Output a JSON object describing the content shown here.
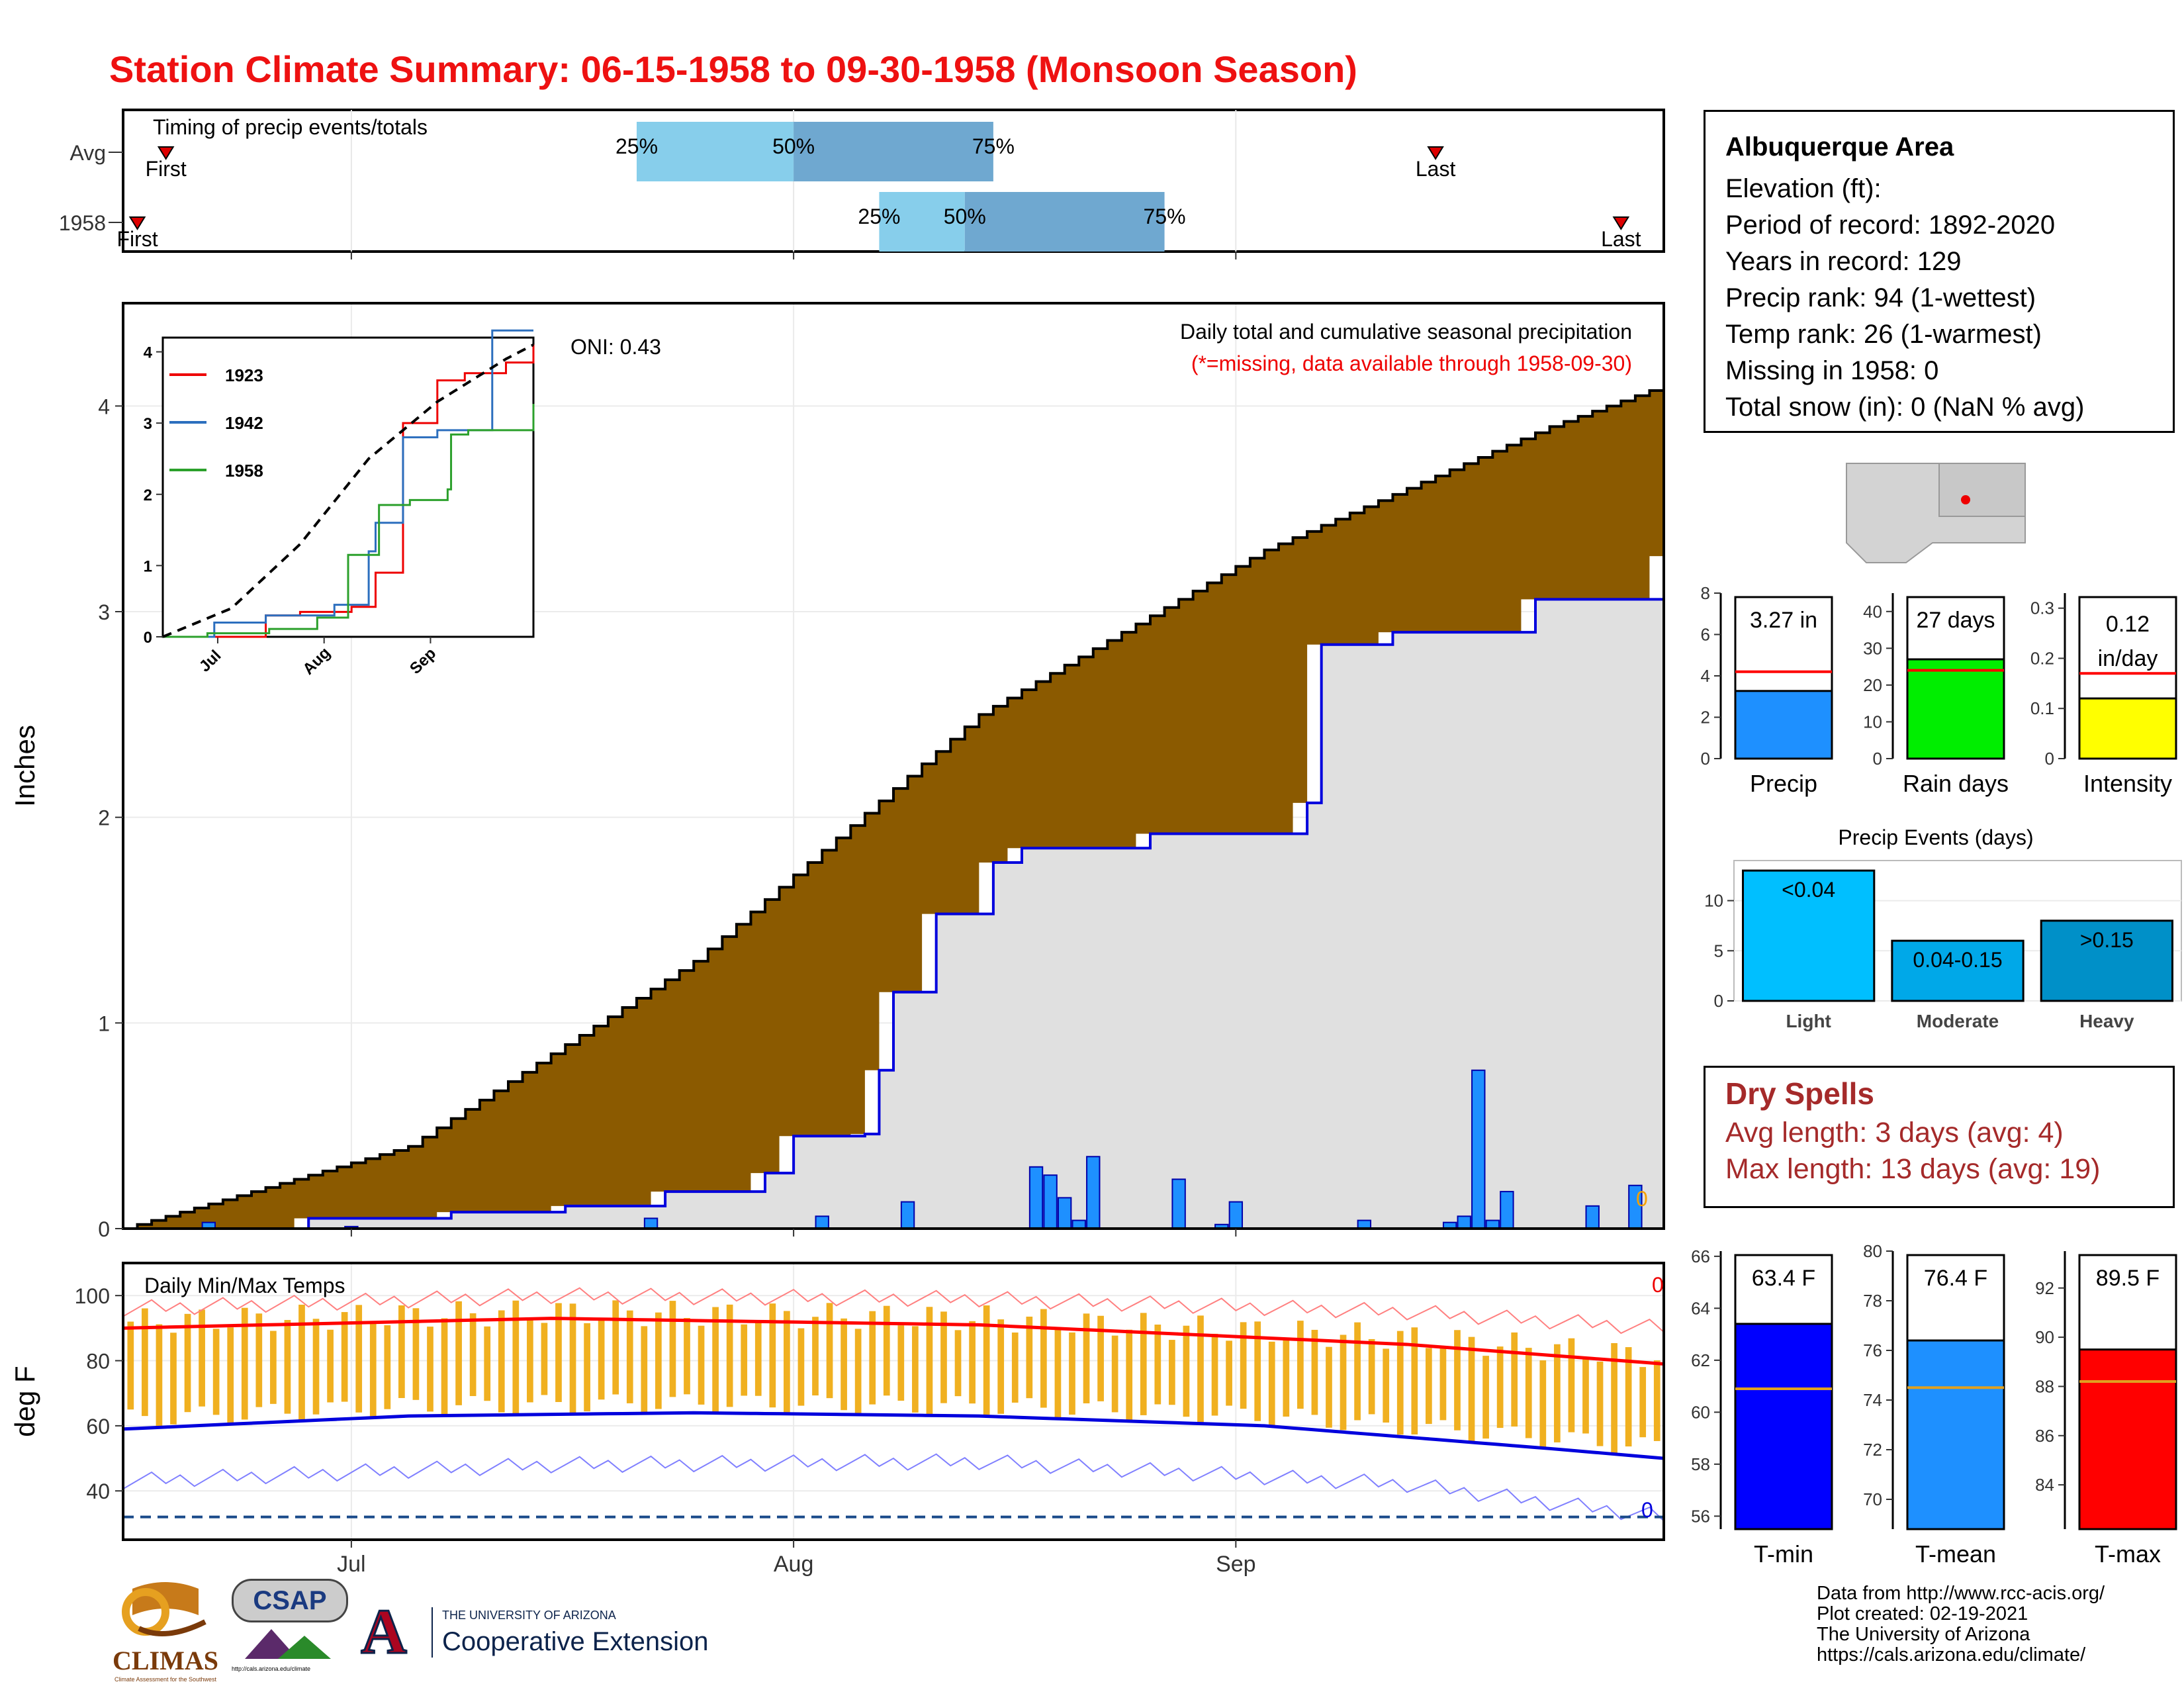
{
  "title": "Station Climate Summary: 06-15-1958 to 09-30-1958 (Monsoon Season)",
  "station": {
    "name": "Albuquerque Area",
    "lines": [
      "Elevation (ft):",
      "Period of record: 1892-2020",
      "Years in record: 129",
      "Precip rank: 94 (1-wettest)",
      "Temp rank: 26 (1-warmest)",
      "Missing in 1958: 0",
      "Total snow (in): 0 (NaN % avg)"
    ]
  },
  "dry_spells": {
    "title": "Dry Spells",
    "avg": "Avg length: 3 days (avg: 4)",
    "max": "Max length: 13 days (avg: 19)"
  },
  "credits": [
    "Data from http://www.rcc-acis.org/",
    "Plot created: 02-19-2021",
    "The University of Arizona",
    "https://cals.arizona.edu/climate/"
  ],
  "logos": {
    "climas": "CLIMAS",
    "climas_sub": "Climate Assessment for the Southwest",
    "csap": "CSAP",
    "csap_url": "http://cals.arizona.edu/climate",
    "ua_letter": "A",
    "ua_top": "THE UNIVERSITY OF ARIZONA",
    "ua_bottom": "Cooperative Extension"
  },
  "colors": {
    "title": "#ee1111",
    "cumulative_avg_fill": "#8b5a00",
    "cumulative_obs_fill": "#e0e0e0",
    "observed_line": "#0000dd",
    "daily_bar": "#1e90ff",
    "tmax_line": "#ff0000",
    "tmin_line": "#0000dd",
    "temp_bar": "#f0b020",
    "timing_light": "#87ceeb",
    "timing_dark": "#6fa8d0",
    "dry_text": "#a52a2a"
  },
  "chart_data": [
    {
      "id": "timing",
      "type": "bar",
      "title": "Timing of precip events/totals",
      "categories": [
        "Avg",
        "1958"
      ],
      "x_ticks": [
        "Jul",
        "Aug",
        "Sep"
      ],
      "rows": [
        {
          "label": "Avg",
          "first": "06-18",
          "p25": "07-21",
          "p50": "08-01",
          "p75": "08-15",
          "last": "09-15"
        },
        {
          "label": "1958",
          "first": "06-16",
          "p25": "08-07",
          "p50": "08-13",
          "p75": "08-27",
          "last": "09-28"
        }
      ],
      "marker_labels": {
        "first": "First",
        "last": "Last",
        "p25": "25%",
        "p50": "50%",
        "p75": "75%"
      }
    },
    {
      "id": "precip",
      "type": "area",
      "title": "Daily total and cumulative seasonal precipitation",
      "subtitle": "(*=missing, data available through 1958-09-30)",
      "ylabel": "Inches",
      "ylim": [
        0,
        4.5
      ],
      "y_ticks": [
        0,
        1,
        2,
        3,
        4
      ],
      "x_ticks": [
        "Jul",
        "Aug",
        "Sep"
      ],
      "oni": "ONI: 0.43",
      "end_label": "0",
      "avg_cumulative": {
        "x_day": [
          0,
          20,
          40,
          60,
          80,
          100,
          108
        ],
        "y": [
          0,
          0.4,
          1.3,
          2.5,
          3.3,
          3.9,
          4.1
        ]
      },
      "observed_cumulative": {
        "x_day": [
          0,
          13,
          23,
          31,
          38,
          45,
          47,
          52,
          53,
          54,
          57,
          61,
          63,
          72,
          83,
          84,
          89,
          99,
          108
        ],
        "y": [
          0,
          0.05,
          0.08,
          0.11,
          0.18,
          0.27,
          0.45,
          0.46,
          0.77,
          1.15,
          1.53,
          1.78,
          1.85,
          1.92,
          2.07,
          2.84,
          2.9,
          3.06,
          3.27
        ]
      },
      "daily_bars": {
        "date": [
          "06-21",
          "07-01",
          "07-22",
          "08-03",
          "08-09",
          "08-18",
          "08-19",
          "08-20",
          "08-21",
          "08-22",
          "08-28",
          "08-31",
          "09-01",
          "09-10",
          "09-16",
          "09-17",
          "09-18",
          "09-19",
          "09-20",
          "09-26",
          "09-29"
        ],
        "value": [
          0.03,
          0.01,
          0.05,
          0.06,
          0.13,
          0.3,
          0.26,
          0.15,
          0.04,
          0.35,
          0.24,
          0.02,
          0.13,
          0.04,
          0.03,
          0.06,
          0.77,
          0.04,
          0.18,
          0.11,
          0.21
        ]
      }
    },
    {
      "id": "inset",
      "type": "line",
      "x_ticks": [
        "Jul",
        "Aug",
        "Sep"
      ],
      "y_ticks": [
        0,
        1,
        2,
        3,
        4
      ],
      "ylim": [
        0,
        4.2
      ],
      "series": [
        {
          "name": "1923",
          "color": "#ee0000",
          "x_day": [
            0,
            30,
            40,
            55,
            62,
            70,
            80,
            88,
            100,
            108
          ],
          "y": [
            0,
            0.3,
            0.35,
            0.42,
            0.9,
            3.0,
            3.6,
            3.7,
            3.85,
            4.1
          ]
        },
        {
          "name": "1942",
          "color": "#2c6fbe",
          "x_day": [
            0,
            15,
            30,
            50,
            60,
            62,
            70,
            80,
            88,
            96,
            108
          ],
          "y": [
            0,
            0.2,
            0.3,
            0.45,
            1.2,
            1.6,
            2.8,
            2.9,
            2.9,
            4.3,
            4.3
          ]
        },
        {
          "name": "1958",
          "color": "#2ca02c",
          "x_day": [
            0,
            13,
            31,
            45,
            54,
            63,
            72,
            83,
            84,
            89,
            108
          ],
          "y": [
            0,
            0.05,
            0.11,
            0.27,
            1.15,
            1.85,
            1.92,
            2.07,
            2.84,
            2.9,
            3.27
          ]
        },
        {
          "name": "avg",
          "color": "#000000",
          "x_day": [
            0,
            20,
            40,
            60,
            80,
            100,
            108
          ],
          "y": [
            0,
            0.4,
            1.3,
            2.5,
            3.3,
            3.9,
            4.1
          ]
        }
      ]
    },
    {
      "id": "temps",
      "type": "line",
      "title": "Daily Min/Max Temps",
      "ylabel": "deg F",
      "ylim": [
        25,
        110
      ],
      "y_ticks": [
        40,
        60,
        80,
        100
      ],
      "x_ticks": [
        "Jul",
        "Aug",
        "Sep"
      ],
      "freeze_line": 32,
      "end_labels": {
        "tmax": "0",
        "tmin": "0"
      },
      "avg_tmax": {
        "x_day": [
          0,
          30,
          60,
          90,
          108
        ],
        "y": [
          90,
          93,
          91,
          85,
          79
        ]
      },
      "avg_tmin": {
        "x_day": [
          0,
          20,
          40,
          60,
          80,
          100,
          108
        ],
        "y": [
          59,
          63,
          64,
          63,
          60,
          53,
          50
        ]
      },
      "record_high_approx": {
        "x_day": [
          0,
          30,
          60,
          90,
          108
        ],
        "y": [
          96,
          100,
          99,
          95,
          90
        ]
      },
      "record_low_approx": {
        "x_day": [
          0,
          30,
          60,
          90,
          108
        ],
        "y": [
          43,
          48,
          49,
          42,
          32
        ]
      }
    },
    {
      "id": "summary_bars",
      "type": "bar",
      "panels": [
        {
          "label": "Precip",
          "value": 3.27,
          "avg": 4.2,
          "text": "3.27 in",
          "ylim": [
            0,
            8
          ],
          "ticks": [
            0,
            2,
            4,
            6,
            8
          ],
          "color": "#1e90ff"
        },
        {
          "label": "Rain days",
          "value": 27,
          "avg": 24,
          "text": "27 days",
          "ylim": [
            0,
            45
          ],
          "ticks": [
            0,
            10,
            20,
            30,
            40
          ],
          "color": "#00ee00"
        },
        {
          "label": "Intensity",
          "value": 0.12,
          "avg": 0.17,
          "text": "0.12 in/day",
          "ylim": [
            0,
            0.33
          ],
          "ticks": [
            0.0,
            0.1,
            0.2,
            0.3
          ],
          "color": "#ffff00"
        }
      ]
    },
    {
      "id": "events",
      "type": "bar",
      "title": "Precip Events (days)",
      "categories": [
        "Light",
        "Moderate",
        "Heavy"
      ],
      "values": [
        13,
        6,
        8
      ],
      "bar_labels": [
        "<0.04",
        "0.04-0.15",
        ">0.15"
      ],
      "ylim": [
        0,
        14
      ],
      "y_ticks": [
        0,
        5,
        10
      ],
      "colors": [
        "#00bfff",
        "#00a8e8",
        "#0090c8"
      ]
    },
    {
      "id": "temp_bars",
      "type": "bar",
      "panels": [
        {
          "label": "T-min",
          "value": 63.4,
          "avg": 60.9,
          "text": "63.4 F",
          "ylim": [
            55.5,
            66.2
          ],
          "ticks": [
            56,
            58,
            60,
            62,
            64,
            66
          ],
          "color": "#0000ff"
        },
        {
          "label": "T-mean",
          "value": 76.4,
          "avg": 74.5,
          "text": "76.4 F",
          "ylim": [
            68.8,
            80
          ],
          "ticks": [
            70,
            72,
            74,
            76,
            78,
            80
          ],
          "color": "#1e90ff"
        },
        {
          "label": "T-max",
          "value": 89.5,
          "avg": 88.2,
          "text": "89.5 F",
          "ylim": [
            82.2,
            93.5
          ],
          "ticks": [
            84,
            86,
            88,
            90,
            92
          ],
          "color": "#ff0000"
        }
      ]
    }
  ]
}
